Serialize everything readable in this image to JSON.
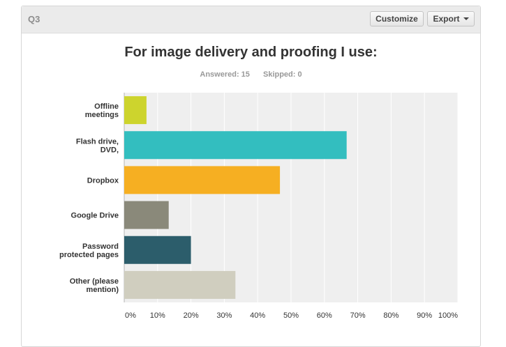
{
  "question": {
    "label": "Q3",
    "customize_label": "Customize",
    "export_label": "Export",
    "answered_label": "Answered: 15",
    "skipped_label": "Skipped: 0"
  },
  "colors": {
    "header_bg": "#ebebeb",
    "plot_bg": "#efefef",
    "bars": [
      "#cdd42d",
      "#33bebf",
      "#f6af22",
      "#8a897a",
      "#2c5d6b",
      "#d0cebf"
    ]
  },
  "chart_data": {
    "type": "bar",
    "orientation": "horizontal",
    "title": "For image delivery and proofing I use:",
    "categories": [
      [
        "Offline",
        "meetings"
      ],
      [
        "Flash drive,",
        "DVD,"
      ],
      [
        "Dropbox"
      ],
      [
        "Google Drive"
      ],
      [
        "Password",
        "protected pages"
      ],
      [
        "Other (please",
        "mention)"
      ]
    ],
    "values": [
      6.67,
      66.67,
      46.67,
      13.33,
      20.0,
      33.33
    ],
    "unit": "%",
    "xlim": [
      0,
      100
    ],
    "ticks": [
      "0%",
      "10%",
      "20%",
      "30%",
      "40%",
      "50%",
      "60%",
      "70%",
      "80%",
      "90%",
      "100%"
    ],
    "grid": true
  }
}
